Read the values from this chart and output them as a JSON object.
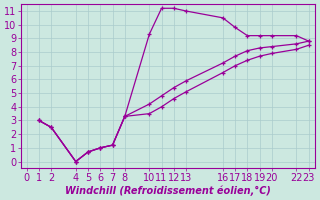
{
  "xlabel": "Windchill (Refroidissement éolien,°C)",
  "bg_color": "#cce8e0",
  "grid_color": "#aacccc",
  "line_color": "#990099",
  "xlim": [
    -0.5,
    23.5
  ],
  "ylim": [
    -0.5,
    11.5
  ],
  "xtick_vals": [
    0,
    1,
    2,
    4,
    5,
    6,
    7,
    8,
    10,
    11,
    12,
    13,
    16,
    17,
    18,
    19,
    20,
    22,
    23
  ],
  "ytick_vals": [
    0,
    1,
    2,
    3,
    4,
    5,
    6,
    7,
    8,
    9,
    10,
    11
  ],
  "line1_x": [
    1,
    2,
    4,
    5,
    6,
    7,
    8,
    10,
    11,
    12,
    13,
    16,
    17,
    18,
    19,
    20,
    22,
    23
  ],
  "line1_y": [
    3.0,
    2.5,
    0.0,
    0.7,
    1.0,
    1.2,
    3.3,
    9.3,
    11.2,
    11.2,
    11.0,
    10.5,
    9.8,
    9.2,
    9.2,
    9.2,
    9.2,
    8.8
  ],
  "line2_x": [
    1,
    2,
    4,
    5,
    6,
    7,
    8,
    10,
    11,
    12,
    13,
    16,
    17,
    18,
    19,
    20,
    22,
    23
  ],
  "line2_y": [
    3.0,
    2.5,
    0.0,
    0.7,
    1.0,
    1.2,
    3.3,
    4.2,
    4.8,
    5.4,
    5.9,
    7.2,
    7.7,
    8.1,
    8.3,
    8.4,
    8.6,
    8.8
  ],
  "line3_x": [
    1,
    2,
    4,
    5,
    6,
    7,
    8,
    10,
    11,
    12,
    13,
    16,
    17,
    18,
    19,
    20,
    22,
    23
  ],
  "line3_y": [
    3.0,
    2.5,
    0.0,
    0.7,
    1.0,
    1.2,
    3.3,
    3.5,
    4.0,
    4.6,
    5.1,
    6.5,
    7.0,
    7.4,
    7.7,
    7.9,
    8.2,
    8.5
  ],
  "font_size_xlabel": 7,
  "font_size_ticks": 7
}
